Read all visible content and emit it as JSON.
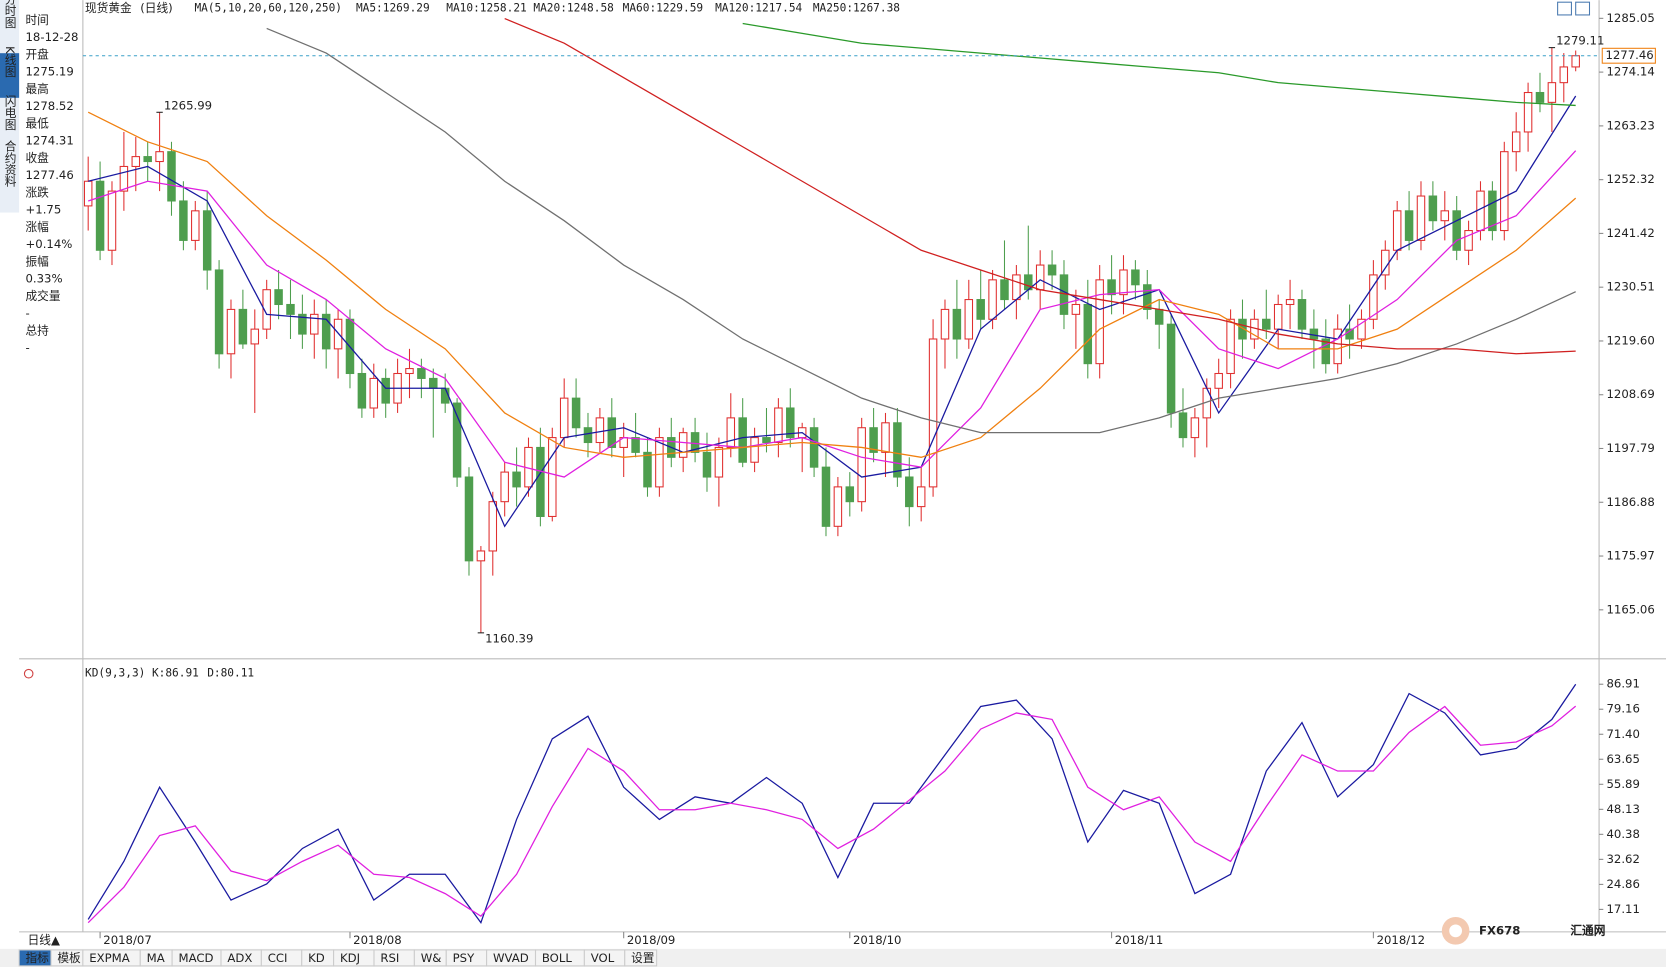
{
  "tabs_left": [
    "分时图",
    "K线图",
    "闪电图",
    "合约资料"
  ],
  "info": [
    [
      "时间",
      "18-12-28"
    ],
    [
      "开盘",
      "1275.19"
    ],
    [
      "最高",
      "1278.52"
    ],
    [
      "最低",
      "1274.31"
    ],
    [
      "收盘",
      "1277.46"
    ],
    [
      "涨跌",
      "+1.75"
    ],
    [
      "涨幅",
      "+0.14%"
    ],
    [
      "振幅",
      "0.33%"
    ],
    [
      "成交量",
      "-"
    ],
    [
      "总持",
      "-"
    ]
  ],
  "bottom_tabs": [
    "指标",
    "模板",
    "EXPMA",
    "MA",
    "MACD",
    "ADX",
    "CCI",
    "KD",
    "KDJ",
    "RSI",
    "W&",
    "PSY",
    "WVAD",
    "BOLL",
    "VOL",
    "设置"
  ],
  "period_button": "日线▲",
  "logo": [
    "FX678",
    "汇通网"
  ],
  "chart_data": {
    "type": "candlestick",
    "title": "现货黄金",
    "period": "(日线)",
    "indicator": "MA(5,10,20,60,120,250)",
    "ylim": [
      1156.2,
      1286.6
    ],
    "yticks": [
      1285.05,
      1274.14,
      1263.23,
      1252.32,
      1241.42,
      1230.51,
      {
        "value": 1219.6,
        "label": "1219.60"
      },
      1208.69,
      1197.79,
      1186.88,
      1175.97,
      1165.06
    ],
    "grid": false,
    "up_color": "#e03030",
    "down_color": "#4e9e4e",
    "last_price": 1277.46,
    "last_color": "#f08010",
    "x_labels": [
      {
        "label": "2018/07",
        "index": 1
      },
      {
        "label": "2018/08",
        "index": 22
      },
      {
        "label": "2018/09",
        "index": 45
      },
      {
        "label": "2018/10",
        "index": 64
      },
      {
        "label": "2018/11",
        "index": 86
      },
      {
        "label": "2018/12",
        "index": 108
      }
    ],
    "annotations": [
      {
        "label": "1265.99",
        "value": 1265.99,
        "index": 6,
        "color": "#d03030"
      },
      {
        "label": "1160.39",
        "value": 1160.39,
        "index": 33,
        "color": "#3a9a3a"
      },
      {
        "label": "1279.11",
        "value": 1279.11,
        "index": 123,
        "color": "#d03030"
      }
    ],
    "candles": [
      [
        1247,
        1257,
        1242,
        1252
      ],
      [
        1252,
        1256,
        1236,
        1238
      ],
      [
        1238,
        1252,
        1235,
        1250
      ],
      [
        1250,
        1262,
        1246,
        1255
      ],
      [
        1255,
        1261,
        1250,
        1257
      ],
      [
        1257,
        1260,
        1252,
        1256
      ],
      [
        1256,
        1265.99,
        1250,
        1258
      ],
      [
        1258,
        1260,
        1245,
        1248
      ],
      [
        1248,
        1252,
        1238,
        1240
      ],
      [
        1240,
        1248,
        1238,
        1246
      ],
      [
        1246,
        1250,
        1230,
        1234
      ],
      [
        1234,
        1236,
        1214,
        1217
      ],
      [
        1217,
        1228,
        1212,
        1226
      ],
      [
        1226,
        1230,
        1218,
        1219
      ],
      [
        1219,
        1226,
        1205,
        1222
      ],
      [
        1222,
        1232,
        1220,
        1230
      ],
      [
        1230,
        1234,
        1224,
        1227
      ],
      [
        1227,
        1232,
        1220,
        1225
      ],
      [
        1225,
        1229,
        1218,
        1221
      ],
      [
        1221,
        1228,
        1216,
        1225
      ],
      [
        1225,
        1228,
        1214,
        1218
      ],
      [
        1218,
        1226,
        1212,
        1224
      ],
      [
        1224,
        1226,
        1210,
        1213
      ],
      [
        1213,
        1216,
        1204,
        1206
      ],
      [
        1206,
        1215,
        1204,
        1212
      ],
      [
        1212,
        1214,
        1204,
        1207
      ],
      [
        1207,
        1216,
        1205,
        1213
      ],
      [
        1213,
        1218,
        1208,
        1214
      ],
      [
        1214,
        1216,
        1208,
        1212
      ],
      [
        1212,
        1214,
        1200,
        1210
      ],
      [
        1210,
        1213,
        1205,
        1207
      ],
      [
        1207,
        1208,
        1190,
        1192
      ],
      [
        1192,
        1194,
        1172,
        1175
      ],
      [
        1175,
        1178,
        1160.39,
        1177
      ],
      [
        1177,
        1189,
        1172,
        1187
      ],
      [
        1187,
        1195,
        1184,
        1193
      ],
      [
        1193,
        1198,
        1186,
        1190
      ],
      [
        1190,
        1200,
        1188,
        1198
      ],
      [
        1198,
        1202,
        1182,
        1184
      ],
      [
        1184,
        1202,
        1183,
        1200
      ],
      [
        1200,
        1212,
        1198,
        1208
      ],
      [
        1208,
        1212,
        1200,
        1202
      ],
      [
        1202,
        1205,
        1196,
        1199
      ],
      [
        1199,
        1206,
        1197,
        1204
      ],
      [
        1204,
        1208,
        1196,
        1198
      ],
      [
        1198,
        1203,
        1192,
        1200
      ],
      [
        1200,
        1205,
        1196,
        1197
      ],
      [
        1197,
        1200,
        1188,
        1190
      ],
      [
        1190,
        1202,
        1188,
        1200
      ],
      [
        1200,
        1204,
        1194,
        1196
      ],
      [
        1196,
        1202,
        1193,
        1201
      ],
      [
        1201,
        1204,
        1195,
        1197
      ],
      [
        1197,
        1201,
        1189,
        1192
      ],
      [
        1192,
        1200,
        1186,
        1198
      ],
      [
        1198,
        1209,
        1196,
        1204
      ],
      [
        1204,
        1208,
        1194,
        1195
      ],
      [
        1195,
        1202,
        1193,
        1200
      ],
      [
        1200,
        1206,
        1197,
        1199
      ],
      [
        1199,
        1208,
        1196,
        1206
      ],
      [
        1206,
        1210,
        1198,
        1200
      ],
      [
        1200,
        1203,
        1193,
        1202
      ],
      [
        1202,
        1204,
        1192,
        1194
      ],
      [
        1194,
        1198,
        1180,
        1182
      ],
      [
        1182,
        1192,
        1180,
        1190
      ],
      [
        1190,
        1193,
        1184,
        1187
      ],
      [
        1187,
        1204,
        1185,
        1202
      ],
      [
        1202,
        1206,
        1195,
        1197
      ],
      [
        1197,
        1205,
        1192,
        1203
      ],
      [
        1203,
        1206,
        1190,
        1192
      ],
      [
        1192,
        1196,
        1182,
        1186
      ],
      [
        1186,
        1194,
        1183,
        1190
      ],
      [
        1190,
        1224,
        1188,
        1220
      ],
      [
        1220,
        1228,
        1214,
        1226
      ],
      [
        1226,
        1232,
        1216,
        1220
      ],
      [
        1220,
        1232,
        1218,
        1228
      ],
      [
        1228,
        1234,
        1222,
        1224
      ],
      [
        1224,
        1234,
        1222,
        1232
      ],
      [
        1232,
        1240,
        1226,
        1228
      ],
      [
        1228,
        1235,
        1224,
        1233
      ],
      [
        1233,
        1243,
        1228,
        1230
      ],
      [
        1230,
        1238,
        1226,
        1235
      ],
      [
        1235,
        1238,
        1230,
        1233
      ],
      [
        1233,
        1236,
        1222,
        1225
      ],
      [
        1225,
        1230,
        1218,
        1227
      ],
      [
        1227,
        1232,
        1212,
        1215
      ],
      [
        1215,
        1235,
        1212,
        1232
      ],
      [
        1232,
        1237,
        1225,
        1229
      ],
      [
        1229,
        1237,
        1225,
        1234
      ],
      [
        1234,
        1236,
        1228,
        1231
      ],
      [
        1231,
        1234,
        1224,
        1226
      ],
      [
        1226,
        1228,
        1218,
        1223
      ],
      [
        1223,
        1225,
        1202,
        1205
      ],
      [
        1205,
        1210,
        1198,
        1200
      ],
      [
        1200,
        1206,
        1196,
        1204
      ],
      [
        1204,
        1212,
        1198,
        1210
      ],
      [
        1210,
        1216,
        1206,
        1213
      ],
      [
        1213,
        1226,
        1210,
        1224
      ],
      [
        1224,
        1228,
        1216,
        1220
      ],
      [
        1220,
        1226,
        1218,
        1224
      ],
      [
        1224,
        1230,
        1220,
        1222
      ],
      [
        1222,
        1229,
        1218,
        1227
      ],
      [
        1227,
        1232,
        1222,
        1228
      ],
      [
        1228,
        1230,
        1220,
        1222
      ],
      [
        1222,
        1226,
        1214,
        1220
      ],
      [
        1220,
        1224,
        1213,
        1215
      ],
      [
        1215,
        1225,
        1213,
        1222
      ],
      [
        1222,
        1227,
        1216,
        1220
      ],
      [
        1220,
        1226,
        1218,
        1224
      ],
      [
        1224,
        1236,
        1222,
        1233
      ],
      [
        1233,
        1240,
        1230,
        1238
      ],
      [
        1238,
        1248,
        1236,
        1246
      ],
      [
        1246,
        1250,
        1238,
        1240
      ],
      [
        1240,
        1252,
        1238,
        1249
      ],
      [
        1249,
        1252,
        1242,
        1244
      ],
      [
        1244,
        1250,
        1240,
        1246
      ],
      [
        1246,
        1249,
        1236,
        1238
      ],
      [
        1238,
        1244,
        1235,
        1242
      ],
      [
        1242,
        1252,
        1240,
        1250
      ],
      [
        1250,
        1252,
        1240,
        1242
      ],
      [
        1242,
        1260,
        1240,
        1258
      ],
      [
        1258,
        1266,
        1254,
        1262
      ],
      [
        1262,
        1272,
        1258,
        1270
      ],
      [
        1270,
        1274,
        1266,
        1268
      ],
      [
        1268,
        1279.11,
        1262,
        1272
      ],
      [
        1272,
        1278,
        1268,
        1275.19
      ],
      [
        1275.19,
        1278.52,
        1274.31,
        1277.46
      ]
    ],
    "series": [
      {
        "name": "MA5:1269.29",
        "color": "#1a1aa0",
        "x": [
          0,
          5,
          10,
          15,
          20,
          25,
          30,
          35,
          40,
          45,
          50,
          55,
          60,
          65,
          70,
          75,
          80,
          85,
          90,
          95,
          100,
          105,
          110,
          115,
          120,
          125
        ],
        "values": [
          1252,
          1255,
          1248,
          1225,
          1224,
          1210,
          1210,
          1182,
          1200,
          1202,
          1197,
          1200,
          1201,
          1192,
          1194,
          1222,
          1232,
          1226,
          1230,
          1205,
          1222,
          1220,
          1238,
          1244,
          1250,
          1269.29
        ]
      },
      {
        "name": "MA10:1258.21",
        "color": "#e020e0",
        "x": [
          0,
          5,
          10,
          15,
          20,
          25,
          30,
          35,
          40,
          45,
          50,
          55,
          60,
          65,
          70,
          75,
          80,
          85,
          90,
          95,
          100,
          105,
          110,
          115,
          120,
          125
        ],
        "values": [
          1248,
          1252,
          1250,
          1235,
          1228,
          1218,
          1212,
          1195,
          1192,
          1200,
          1199,
          1198,
          1200,
          1196,
          1194,
          1206,
          1226,
          1229,
          1230,
          1218,
          1214,
          1220,
          1228,
          1240,
          1245,
          1258.21
        ]
      },
      {
        "name": "MA20:1248.58",
        "color": "#f08010",
        "x": [
          0,
          5,
          10,
          15,
          20,
          25,
          30,
          35,
          40,
          45,
          50,
          55,
          60,
          65,
          70,
          75,
          80,
          85,
          90,
          95,
          100,
          105,
          110,
          115,
          120,
          125
        ],
        "values": [
          1266,
          1260,
          1256,
          1245,
          1236,
          1226,
          1218,
          1205,
          1198,
          1196,
          1197,
          1198,
          1199,
          1198,
          1196,
          1200,
          1210,
          1222,
          1228,
          1225,
          1218,
          1218,
          1222,
          1230,
          1238,
          1248.58
        ]
      },
      {
        "name": "MA60:1229.59",
        "color": "#707070",
        "x": [
          15,
          20,
          25,
          30,
          35,
          40,
          45,
          50,
          55,
          60,
          65,
          70,
          75,
          80,
          85,
          90,
          95,
          100,
          105,
          110,
          115,
          120,
          125
        ],
        "values": [
          1283,
          1278,
          1270,
          1262,
          1252,
          1244,
          1235,
          1228,
          1220,
          1214,
          1208,
          1204,
          1201,
          1201,
          1201,
          1204,
          1208,
          1210,
          1212,
          1215,
          1219,
          1224,
          1229.59
        ]
      },
      {
        "name": "MA120:1217.54",
        "color": "#d02020",
        "x": [
          35,
          40,
          45,
          50,
          55,
          60,
          65,
          70,
          75,
          80,
          85,
          90,
          95,
          100,
          105,
          110,
          115,
          120,
          125
        ],
        "values": [
          1285,
          1280,
          1273,
          1266,
          1259,
          1252,
          1245,
          1238,
          1234,
          1230,
          1228,
          1226,
          1224,
          1221,
          1219,
          1218,
          1218,
          1217,
          1217.54
        ]
      },
      {
        "name": "MA250:1267.38",
        "color": "#2a9a2a",
        "x": [
          55,
          60,
          65,
          70,
          75,
          80,
          85,
          90,
          95,
          100,
          105,
          110,
          115,
          120,
          125
        ],
        "values": [
          1284,
          1282,
          1280,
          1279,
          1278,
          1277,
          1276,
          1275,
          1274,
          1272,
          1271,
          1270,
          1269,
          1268,
          1267.38
        ]
      }
    ],
    "kd": {
      "type": "line",
      "title": "KD(9,3,3)",
      "ylim": [
        10.8,
        88.2
      ],
      "yticks": [
        86.91,
        79.16,
        {
          "value": 71.4,
          "label": "71.40"
        },
        63.65,
        55.89,
        48.13,
        40.38,
        32.62,
        24.86,
        17.11
      ],
      "x": [
        0,
        3,
        6,
        9,
        12,
        15,
        18,
        21,
        24,
        27,
        30,
        33,
        36,
        39,
        42,
        45,
        48,
        51,
        54,
        57,
        60,
        63,
        66,
        69,
        72,
        75,
        78,
        81,
        84,
        87,
        90,
        93,
        96,
        99,
        102,
        105,
        108,
        111,
        114,
        117,
        120,
        123,
        125
      ],
      "series": [
        {
          "name": "K:86.91",
          "color": "#1a1aa0",
          "values": [
            14,
            32,
            55,
            38,
            20,
            25,
            36,
            42,
            20,
            28,
            28,
            13,
            45,
            70,
            77,
            55,
            45,
            52,
            50,
            58,
            50,
            27,
            50,
            50,
            65,
            80,
            82,
            70,
            38,
            54,
            50,
            22,
            28,
            60,
            75,
            52,
            62,
            84,
            78,
            65,
            67,
            76,
            86.91
          ]
        },
        {
          "name": "D:80.11",
          "color": "#e020e0",
          "values": [
            13,
            24,
            40,
            43,
            29,
            26,
            32,
            37,
            28,
            27,
            22,
            15,
            28,
            49,
            67,
            60,
            48,
            48,
            50,
            48,
            45,
            36,
            42,
            51,
            60,
            73,
            78,
            76,
            55,
            48,
            52,
            38,
            32,
            49,
            65,
            60,
            60,
            72,
            80,
            68,
            69,
            74,
            80.11
          ]
        }
      ]
    }
  }
}
